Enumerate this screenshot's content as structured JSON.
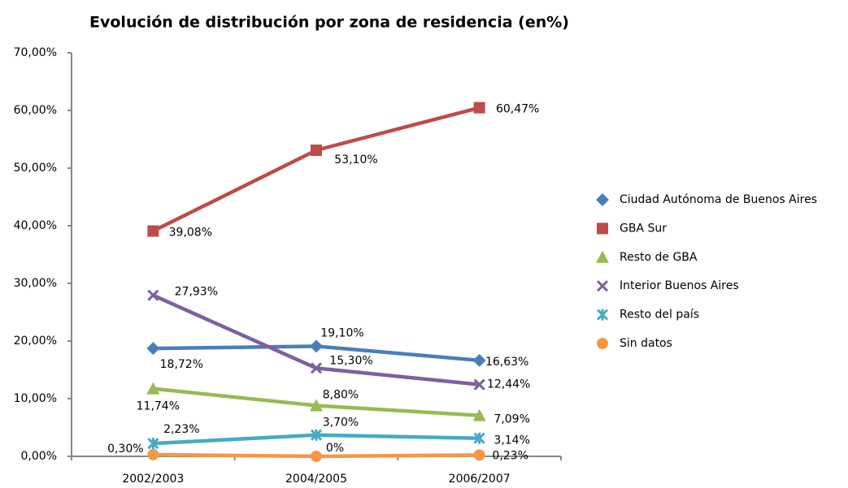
{
  "chart_data": {
    "type": "line",
    "title": "Evolución de distribución por zona de residencia (en%)",
    "categories": [
      "2002/2003",
      "2004/2005",
      "2006/2007"
    ],
    "ylim": [
      0,
      70
    ],
    "yticks": [
      {
        "value": 0,
        "label": "0,00%"
      },
      {
        "value": 10,
        "label": "10,00%"
      },
      {
        "value": 20,
        "label": "20,00%"
      },
      {
        "value": 30,
        "label": "30,00%"
      },
      {
        "value": 40,
        "label": "40,00%"
      },
      {
        "value": 50,
        "label": "50,00%"
      },
      {
        "value": 60,
        "label": "60,00%"
      },
      {
        "value": 70,
        "label": "70,00%"
      }
    ],
    "legend": "right",
    "series": [
      {
        "name": "Ciudad Autónoma de Buenos Aires",
        "color": "#4a7ebb",
        "marker": "diamond",
        "values": [
          18.72,
          19.1,
          16.63
        ],
        "value_labels": [
          "18,72%",
          "19,10%",
          "16,63%"
        ]
      },
      {
        "name": "GBA Sur",
        "color": "#be4b48",
        "marker": "square",
        "values": [
          39.08,
          53.1,
          60.47
        ],
        "value_labels": [
          "39,08%",
          "53,10%",
          "60,47%"
        ]
      },
      {
        "name": "Resto de GBA",
        "color": "#98b954",
        "marker": "triangle",
        "values": [
          11.74,
          8.8,
          7.09
        ],
        "value_labels": [
          "11,74%",
          "8,80%",
          "7,09%"
        ]
      },
      {
        "name": "Interior Buenos Aires",
        "color": "#7d60a0",
        "marker": "x",
        "values": [
          27.93,
          15.3,
          12.44
        ],
        "value_labels": [
          "27,93%",
          "15,30%",
          "12,44%"
        ]
      },
      {
        "name": "Resto del país",
        "color": "#46aac5",
        "marker": "star",
        "values": [
          2.23,
          3.7,
          3.14
        ],
        "value_labels": [
          "2,23%",
          "3,70%",
          "3,14%"
        ]
      },
      {
        "name": "Sin datos",
        "color": "#f79646",
        "marker": "circle",
        "values": [
          0.3,
          0,
          0.23
        ],
        "value_labels": [
          "0,30%",
          "0%",
          "0,23%"
        ]
      }
    ]
  }
}
